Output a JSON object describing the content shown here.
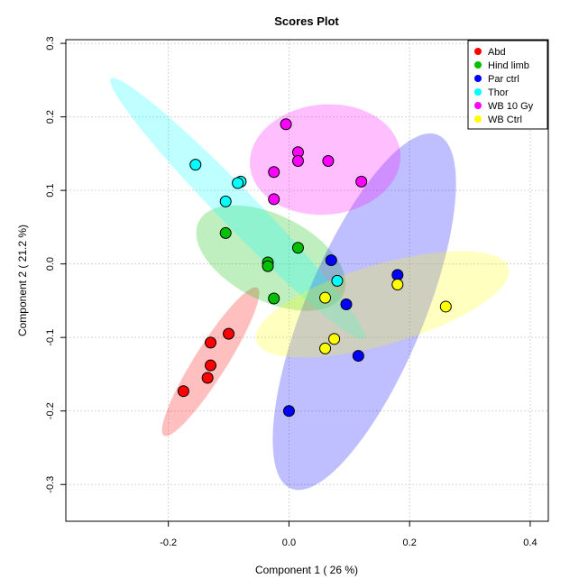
{
  "chart_data": {
    "type": "scatter",
    "title": "Scores Plot",
    "xlabel": "Component 1 ( 26 %)",
    "ylabel": "Component 2 ( 21.2 %)",
    "xlim": [
      -0.37,
      0.43
    ],
    "ylim": [
      -0.35,
      0.305
    ],
    "xticks": [
      -0.2,
      0.0,
      0.2,
      0.4
    ],
    "xtick_labels": [
      "-0.2",
      "0.0",
      "0.2",
      "0.4"
    ],
    "yticks": [
      -0.3,
      -0.2,
      -0.1,
      0.0,
      0.1,
      0.2,
      0.3
    ],
    "ytick_labels": [
      "-0.3",
      "-0.2",
      "-0.1",
      "0.0",
      "0.1",
      "0.2",
      "0.3"
    ],
    "grid": true,
    "legend_position": "top-right",
    "series": [
      {
        "name": "Abd",
        "color": "#ff0000",
        "points": [
          [
            -0.1,
            -0.095
          ],
          [
            -0.13,
            -0.107
          ],
          [
            -0.13,
            -0.138
          ],
          [
            -0.135,
            -0.155
          ],
          [
            -0.175,
            -0.173
          ]
        ],
        "ellipse": {
          "cx": -0.13,
          "cy": -0.133,
          "a": 0.127,
          "b": 0.025,
          "angle_deg": 52
        }
      },
      {
        "name": "Hind limb",
        "color": "#00c000",
        "points": [
          [
            -0.105,
            0.042
          ],
          [
            0.015,
            0.022
          ],
          [
            -0.035,
            0.002
          ],
          [
            -0.035,
            -0.003
          ],
          [
            -0.025,
            -0.047
          ]
        ],
        "ellipse": {
          "cx": -0.03,
          "cy": 0.008,
          "a": 0.13,
          "b": 0.06,
          "angle_deg": -20
        }
      },
      {
        "name": "Par ctrl",
        "color": "#0000ff",
        "points": [
          [
            0.07,
            0.005
          ],
          [
            0.18,
            -0.015
          ],
          [
            0.095,
            -0.055
          ],
          [
            0.115,
            -0.125
          ],
          [
            0.0,
            -0.2
          ]
        ],
        "ellipse": {
          "cx": 0.125,
          "cy": -0.065,
          "a": 0.27,
          "b": 0.095,
          "angle_deg": 62
        }
      },
      {
        "name": "Thor",
        "color": "#00ffff",
        "points": [
          [
            -0.155,
            0.135
          ],
          [
            -0.08,
            0.112
          ],
          [
            -0.085,
            0.11
          ],
          [
            -0.105,
            0.085
          ],
          [
            0.08,
            -0.023
          ]
        ],
        "ellipse": {
          "cx": -0.085,
          "cy": 0.075,
          "a": 0.275,
          "b": 0.028,
          "angle_deg": -40
        }
      },
      {
        "name": "WB 10 Gy",
        "color": "#ff00ff",
        "points": [
          [
            -0.005,
            0.19
          ],
          [
            0.015,
            0.152
          ],
          [
            0.015,
            0.14
          ],
          [
            0.065,
            0.14
          ],
          [
            -0.025,
            0.125
          ],
          [
            -0.025,
            0.088
          ],
          [
            0.12,
            0.112
          ]
        ],
        "ellipse": {
          "cx": 0.06,
          "cy": 0.142,
          "a": 0.125,
          "b": 0.075,
          "angle_deg": 3
        }
      },
      {
        "name": "WB Ctrl",
        "color": "#ffff00",
        "points": [
          [
            0.18,
            -0.028
          ],
          [
            0.26,
            -0.058
          ],
          [
            0.06,
            -0.046
          ],
          [
            0.075,
            -0.102
          ],
          [
            0.06,
            -0.115
          ]
        ],
        "ellipse": {
          "cx": 0.155,
          "cy": -0.055,
          "a": 0.215,
          "b": 0.055,
          "angle_deg": 13
        }
      }
    ]
  }
}
